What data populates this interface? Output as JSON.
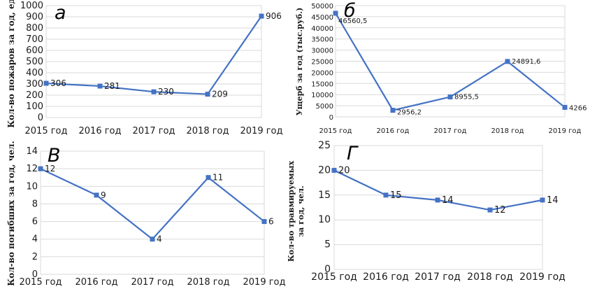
{
  "chart_data": [
    {
      "id": "a",
      "panel_letter": "а",
      "type": "line",
      "ylabel": "Кол-во пожаров за год, ед.",
      "categories": [
        "2015 год",
        "2016 год",
        "2017 год",
        "2018 год",
        "2019 год"
      ],
      "values": [
        306,
        281,
        230,
        209,
        906
      ],
      "data_labels": [
        "306",
        "281",
        "230",
        "209",
        "906"
      ],
      "ylim": [
        0,
        1000
      ],
      "yticks": [
        "0",
        "100",
        "200",
        "300",
        "400",
        "500",
        "600",
        "700",
        "800",
        "900",
        "1000"
      ],
      "grid": true,
      "color": "#4472c4"
    },
    {
      "id": "b",
      "panel_letter": "б",
      "type": "line",
      "ylabel": "Ущерб за год (тыс.руб.)",
      "categories": [
        "2015 год",
        "2016 год",
        "2017 год",
        "2018 год",
        "2019 год"
      ],
      "values": [
        46560.5,
        2956.2,
        8955.5,
        24891.6,
        4266
      ],
      "data_labels": [
        "46560,5",
        "2956,2",
        "8955,5",
        "24891,6",
        "4266"
      ],
      "ylim": [
        0,
        50000
      ],
      "yticks": [
        "0",
        "5000",
        "10000",
        "15000",
        "20000",
        "25000",
        "30000",
        "35000",
        "40000",
        "45000",
        "50000"
      ],
      "grid": true,
      "color": "#4472c4"
    },
    {
      "id": "v",
      "panel_letter": "В",
      "type": "line",
      "ylabel": "Кол-во погибших за год, чел.",
      "categories": [
        "2015 год",
        "2016 год",
        "2017 год",
        "2018 год",
        "2019 год"
      ],
      "values": [
        12,
        9,
        4,
        11,
        6
      ],
      "data_labels": [
        "12",
        "9",
        "4",
        "11",
        "6"
      ],
      "ylim": [
        0,
        14
      ],
      "yticks": [
        "0",
        "2",
        "4",
        "6",
        "8",
        "10",
        "12",
        "14"
      ],
      "grid": true,
      "color": "#4472c4"
    },
    {
      "id": "g",
      "panel_letter": "Г",
      "type": "line",
      "ylabel_lines": [
        "Кол-во травмируемых",
        "за год, чел."
      ],
      "categories": [
        "2015 год",
        "2016 год",
        "2017 год",
        "2018 год",
        "2019 год"
      ],
      "values": [
        20,
        15,
        14,
        12,
        14
      ],
      "data_labels": [
        "20",
        "15",
        "14",
        "12",
        "14"
      ],
      "ylim": [
        0,
        25
      ],
      "yticks": [
        "0",
        "5",
        "10",
        "15",
        "20",
        "25"
      ],
      "grid": true,
      "color": "#4472c4"
    }
  ]
}
